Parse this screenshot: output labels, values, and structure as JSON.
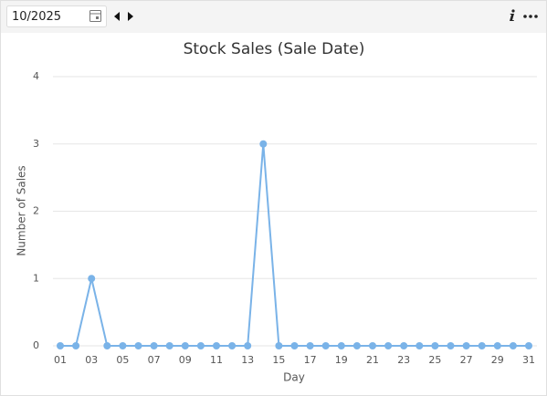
{
  "toolbar": {
    "period": "10/2025"
  },
  "chart_data": {
    "type": "line",
    "title": "Stock Sales (Sale Date)",
    "x_label": "Day",
    "y_label": "Number of Sales",
    "categories": [
      "01",
      null,
      "03",
      null,
      "05",
      null,
      "07",
      null,
      "09",
      null,
      "11",
      null,
      "13",
      null,
      "15",
      null,
      "17",
      null,
      "19",
      null,
      "21",
      null,
      "23",
      null,
      "25",
      null,
      "27",
      null,
      "29",
      null,
      "31"
    ],
    "values": [
      0,
      0,
      1,
      0,
      0,
      0,
      0,
      0,
      0,
      0,
      0,
      0,
      0,
      3,
      0,
      0,
      0,
      0,
      0,
      0,
      0,
      0,
      0,
      0,
      0,
      0,
      0,
      0,
      0,
      0,
      0
    ],
    "color": "#7ab3e8",
    "ylim": [
      0,
      4
    ],
    "yticks": [
      0,
      1,
      2,
      3,
      4
    ],
    "grid": true
  }
}
